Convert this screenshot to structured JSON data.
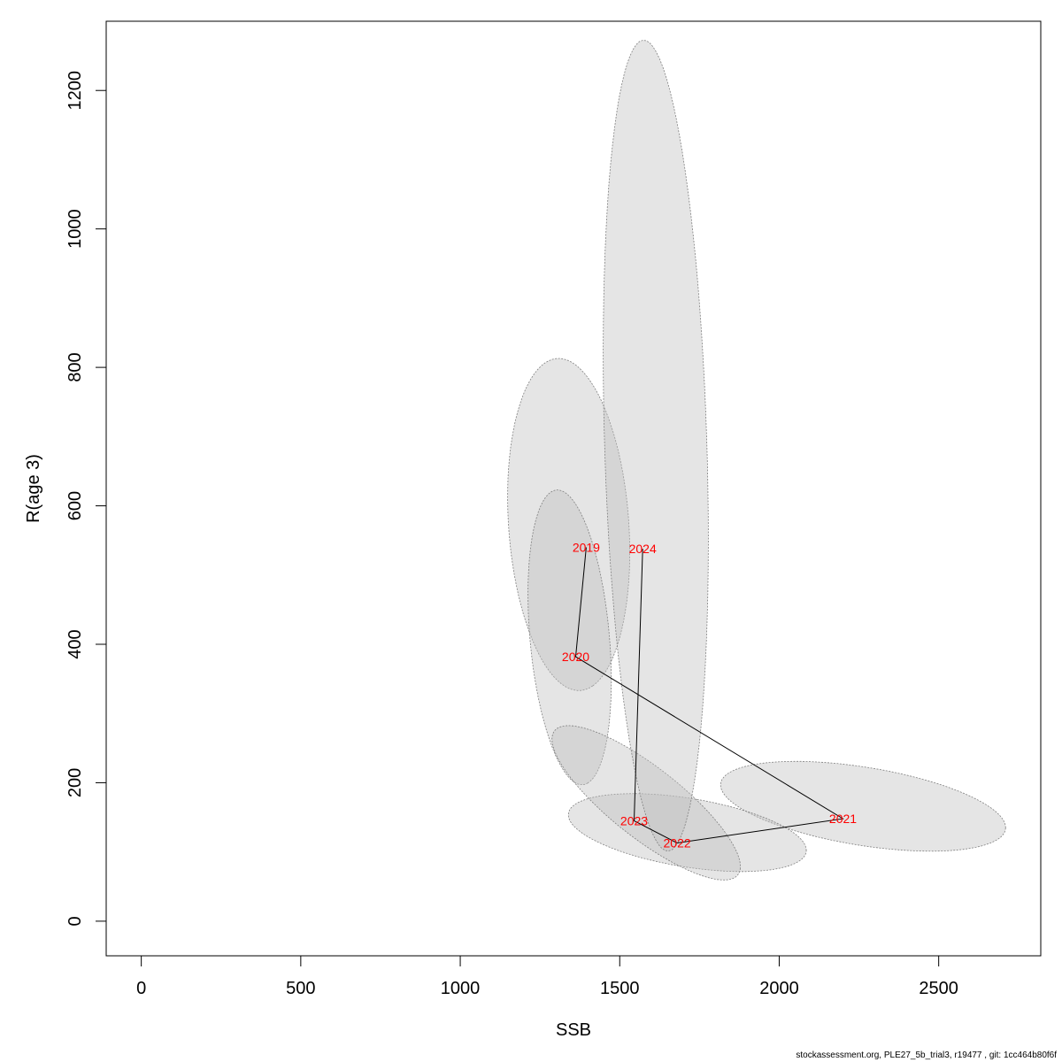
{
  "chart_data": {
    "type": "scatter",
    "xlabel": "SSB",
    "ylabel": "R(age 3)",
    "xlim": [
      -110,
      2820
    ],
    "ylim": [
      -50,
      1300
    ],
    "x_ticks": [
      0,
      500,
      1000,
      1500,
      2000,
      2500
    ],
    "y_ticks": [
      0,
      200,
      400,
      600,
      800,
      1000,
      1200
    ],
    "grid": false,
    "legend": "none",
    "point_color": "#ff0000",
    "line_color": "#000000",
    "ellipse_fill": "#bebebe",
    "ellipse_stroke": "#808080",
    "points": [
      {
        "label": "2019",
        "x": 1395,
        "y": 540
      },
      {
        "label": "2020",
        "x": 1362,
        "y": 382
      },
      {
        "label": "2021",
        "x": 2200,
        "y": 148
      },
      {
        "label": "2022",
        "x": 1680,
        "y": 113
      },
      {
        "label": "2023",
        "x": 1545,
        "y": 145
      },
      {
        "label": "2024",
        "x": 1572,
        "y": 538
      }
    ],
    "confidence_regions": [
      {
        "year": "2019",
        "cx": 1340,
        "cy": 573,
        "rx": 245,
        "ry": 185,
        "rot": -72
      },
      {
        "year": "2020",
        "cx": 1343,
        "cy": 410,
        "rx": 218,
        "ry": 122,
        "rot": -75
      },
      {
        "year": "2021",
        "cx": 2263,
        "cy": 166,
        "rx": 448,
        "ry": 57,
        "rot": -4
      },
      {
        "year": "2022",
        "cx": 1712,
        "cy": 128,
        "rx": 374,
        "ry": 50,
        "rot": -4
      },
      {
        "year": "2023",
        "cx": 1583,
        "cy": 171,
        "rx": 310,
        "ry": 60,
        "rot": -18
      },
      {
        "year": "2024",
        "cx": 1613,
        "cy": 687,
        "rx": 587,
        "ry": 160,
        "rot": -86
      }
    ]
  },
  "footer": "stockassessment.org, PLE27_5b_trial3, r19477 , git: 1cc464b80f6f"
}
